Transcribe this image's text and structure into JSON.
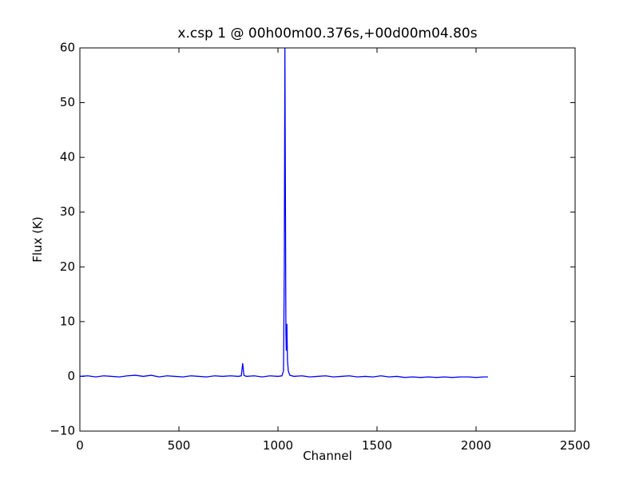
{
  "chart_data": {
    "type": "line",
    "title": "x.csp 1 @ 00h00m00.376s,+00d00m04.80s",
    "x_label": "Channel",
    "y_label": "Flux (K)",
    "xlim": [
      0,
      2500
    ],
    "xticks": [
      0,
      500,
      1000,
      1500,
      2000,
      2500
    ],
    "ylim": [
      -10,
      60
    ],
    "yticks": [
      {
        "value": -10,
        "label": "−10"
      },
      0,
      10,
      20,
      30,
      40,
      50,
      60
    ],
    "grid": false,
    "series": [
      {
        "color": "#0000ff",
        "x": [
          0,
          40,
          80,
          120,
          160,
          200,
          240,
          280,
          320,
          360,
          400,
          440,
          480,
          520,
          560,
          600,
          640,
          680,
          720,
          760,
          800,
          815,
          822,
          828,
          840,
          880,
          920,
          960,
          1000,
          1020,
          1028,
          1032,
          1035,
          1038,
          1040,
          1042,
          1045,
          1048,
          1052,
          1060,
          1080,
          1120,
          1160,
          1200,
          1240,
          1280,
          1320,
          1360,
          1400,
          1440,
          1480,
          1520,
          1560,
          1600,
          1640,
          1680,
          1720,
          1760,
          1800,
          1840,
          1880,
          1920,
          1960,
          2000,
          2040,
          2060
        ],
        "values": [
          0.0,
          0.1,
          -0.1,
          0.1,
          0.0,
          -0.1,
          0.1,
          0.2,
          0.0,
          0.2,
          -0.1,
          0.1,
          0.0,
          -0.1,
          0.1,
          0.0,
          -0.1,
          0.1,
          0.0,
          0.1,
          0.0,
          0.1,
          2.4,
          0.2,
          0.0,
          0.1,
          -0.1,
          0.1,
          0.0,
          0.1,
          1.0,
          20,
          60,
          30,
          8,
          4.7,
          9.6,
          3,
          1.0,
          0.2,
          0.0,
          0.1,
          -0.1,
          0.0,
          0.1,
          -0.1,
          0.0,
          0.1,
          -0.1,
          0.0,
          -0.1,
          0.1,
          -0.1,
          0.0,
          -0.2,
          -0.1,
          -0.2,
          -0.1,
          -0.2,
          -0.1,
          -0.2,
          -0.1,
          -0.1,
          -0.2,
          -0.1,
          -0.1
        ]
      }
    ]
  }
}
